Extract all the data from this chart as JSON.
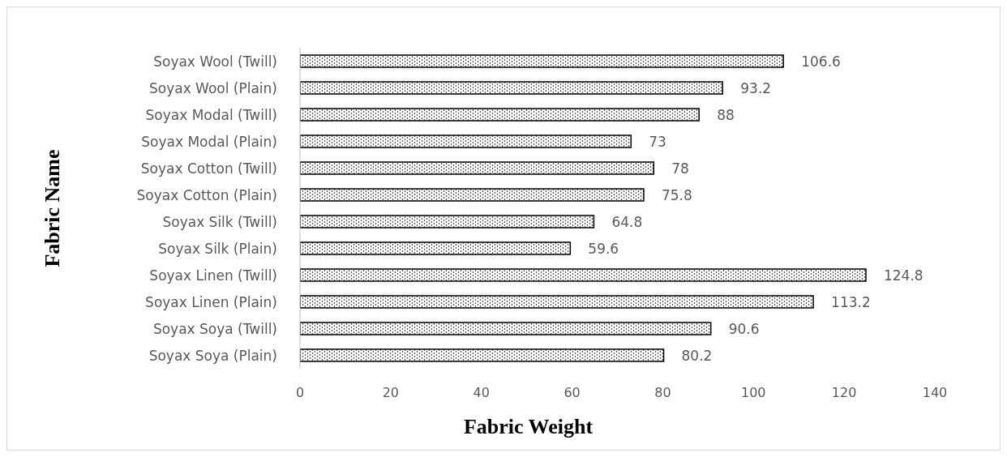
{
  "chart_data": {
    "type": "bar",
    "orientation": "horizontal",
    "xlabel": "Fabric Weight",
    "ylabel": "Fabric Name",
    "categories": [
      "Soyax Wool (Twill)",
      "Soyax Wool (Plain)",
      "Soyax Modal (Twill)",
      "Soyax Modal (Plain)",
      "Soyax Cotton (Twill)",
      "Soyax Cotton (Plain)",
      "Soyax Silk (Twill)",
      "Soyax Silk (Plain)",
      "Soyax Linen (Twill)",
      "Soyax Linen (Plain)",
      "Soyax Soya (Twill)",
      "Soyax Soya (Plain)"
    ],
    "values": [
      106.6,
      93.2,
      88,
      73,
      78,
      75.8,
      64.8,
      59.6,
      124.8,
      113.2,
      90.6,
      80.2
    ],
    "color": "#000000",
    "data_labels": true,
    "xlim": [
      0,
      140
    ],
    "xticks": [
      0,
      20,
      40,
      60,
      80,
      100,
      120,
      140
    ]
  }
}
